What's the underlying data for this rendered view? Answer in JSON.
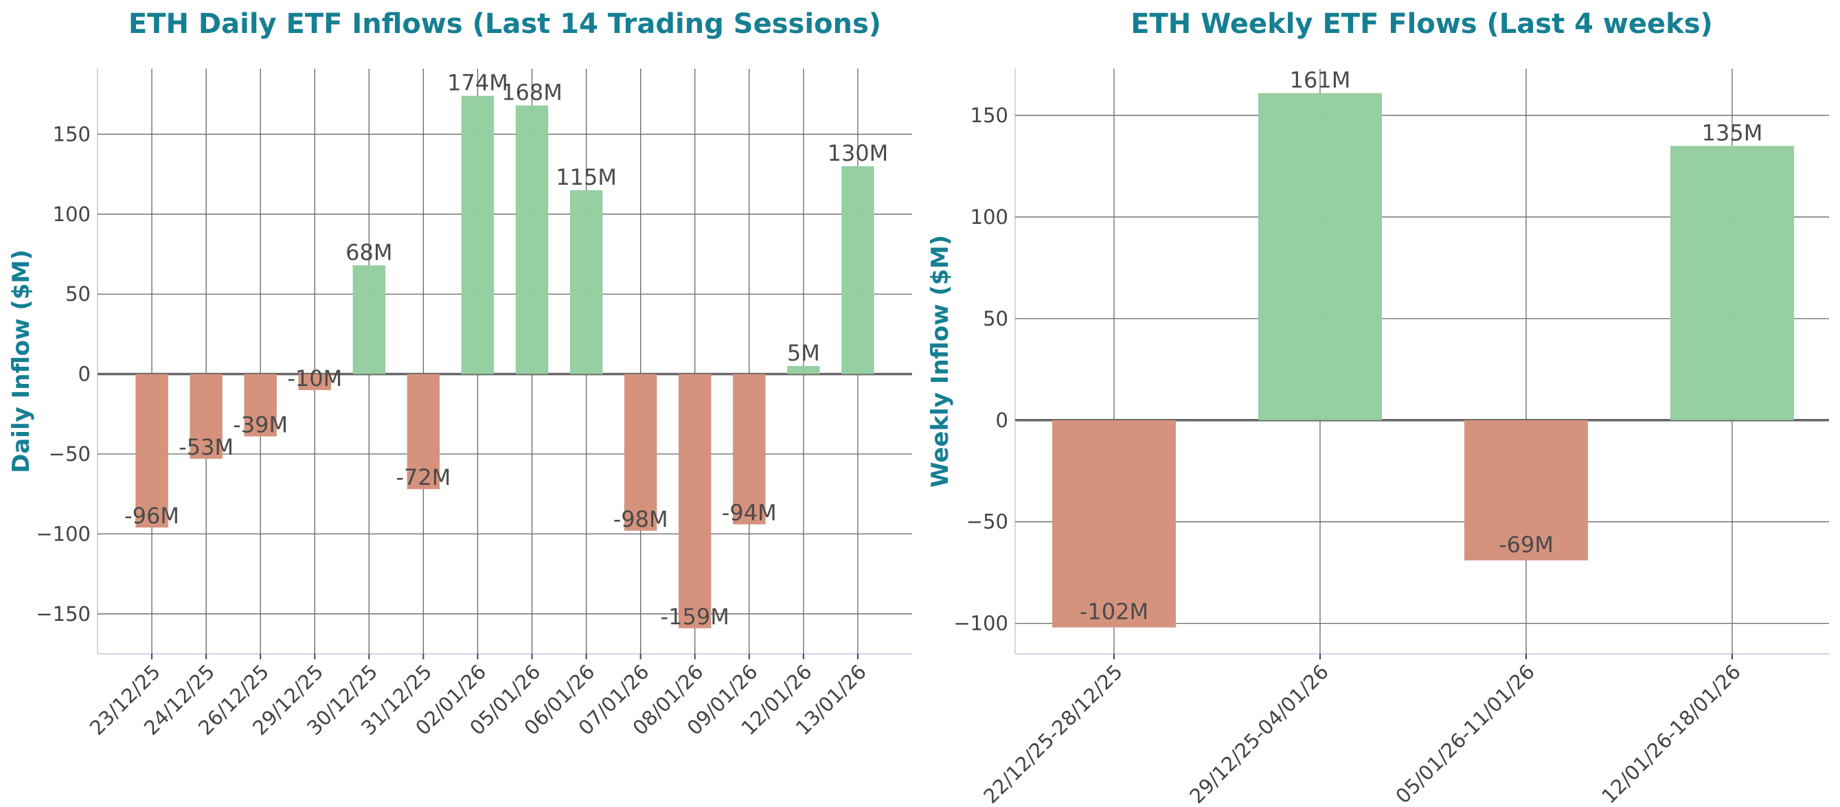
{
  "colors": {
    "positive": "#93cea0",
    "negative": "#d4917b",
    "title": "#157f93",
    "grid": "#555555"
  },
  "chart_data": [
    {
      "type": "bar",
      "title": "ETH Daily ETF Inflows (Last 14 Trading Sessions)",
      "xlabel": "",
      "ylabel": "Daily Inflow ($M)",
      "categories": [
        "23/12/25",
        "24/12/25",
        "26/12/25",
        "29/12/25",
        "30/12/25",
        "31/12/25",
        "02/01/26",
        "05/01/26",
        "06/01/26",
        "07/01/26",
        "08/01/26",
        "09/01/26",
        "12/01/26",
        "13/01/26"
      ],
      "values": [
        -96,
        -53,
        -39,
        -10,
        68,
        -72,
        174,
        168,
        115,
        -98,
        -159,
        -94,
        5,
        130
      ],
      "data_labels": [
        "-96M",
        "-53M",
        "-39M",
        "-10M",
        "68M",
        "-72M",
        "174M",
        "168M",
        "115M",
        "-98M",
        "-159M",
        "-94M",
        "5M",
        "130M"
      ],
      "yticks": [
        -150,
        -100,
        -50,
        0,
        50,
        100,
        150
      ],
      "ylim": [
        -175,
        191
      ],
      "grid": true
    },
    {
      "type": "bar",
      "title": "ETH Weekly ETF Flows (Last 4 weeks)",
      "xlabel": "",
      "ylabel": "Weekly Inflow ($M)",
      "categories": [
        "22/12/25-28/12/25",
        "29/12/25-04/01/26",
        "05/01/26-11/01/26",
        "12/01/26-18/01/26"
      ],
      "values": [
        -102,
        161,
        -69,
        135
      ],
      "data_labels": [
        "-102M",
        "161M",
        "-69M",
        "135M"
      ],
      "yticks": [
        -100,
        -50,
        0,
        50,
        100,
        150
      ],
      "ylim": [
        -115,
        173
      ],
      "grid": true
    }
  ]
}
